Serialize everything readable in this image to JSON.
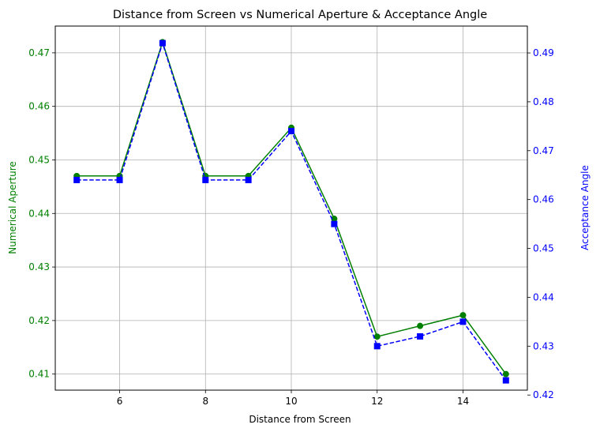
{
  "chart_data": {
    "type": "line",
    "title": "Distance from Screen vs Numerical Aperture & Acceptance Angle",
    "xlabel": "Distance from Screen",
    "ylabel_left": "Numerical Aperture",
    "ylabel_right": "Acceptance Angle",
    "xlim": [
      4.5,
      15.5
    ],
    "ylim_left": [
      0.407,
      0.475
    ],
    "ylim_right": [
      0.421,
      0.4955
    ],
    "x_ticks": [
      6,
      8,
      10,
      12,
      14
    ],
    "y_ticks_left": [
      0.41,
      0.42,
      0.43,
      0.44,
      0.45,
      0.46,
      0.47
    ],
    "y_ticks_right": [
      0.42,
      0.43,
      0.44,
      0.45,
      0.46,
      0.47,
      0.48,
      0.49
    ],
    "x": [
      5,
      6,
      7,
      8,
      9,
      10,
      11,
      12,
      13,
      14,
      15
    ],
    "grid": true,
    "series": [
      {
        "axis": "left",
        "color": "#008000",
        "line_style": "solid",
        "marker": "circle",
        "values": [
          0.447,
          0.447,
          0.472,
          0.447,
          0.447,
          0.456,
          0.439,
          0.417,
          0.419,
          0.421,
          0.41
        ]
      },
      {
        "axis": "right",
        "color": "#0000ff",
        "line_style": "dashed",
        "marker": "square",
        "values": [
          0.464,
          0.464,
          0.492,
          0.464,
          0.464,
          0.474,
          0.455,
          0.43,
          0.432,
          0.435,
          0.423
        ]
      }
    ],
    "axis_colors": {
      "left": "#008000",
      "right": "#0000ff"
    }
  }
}
